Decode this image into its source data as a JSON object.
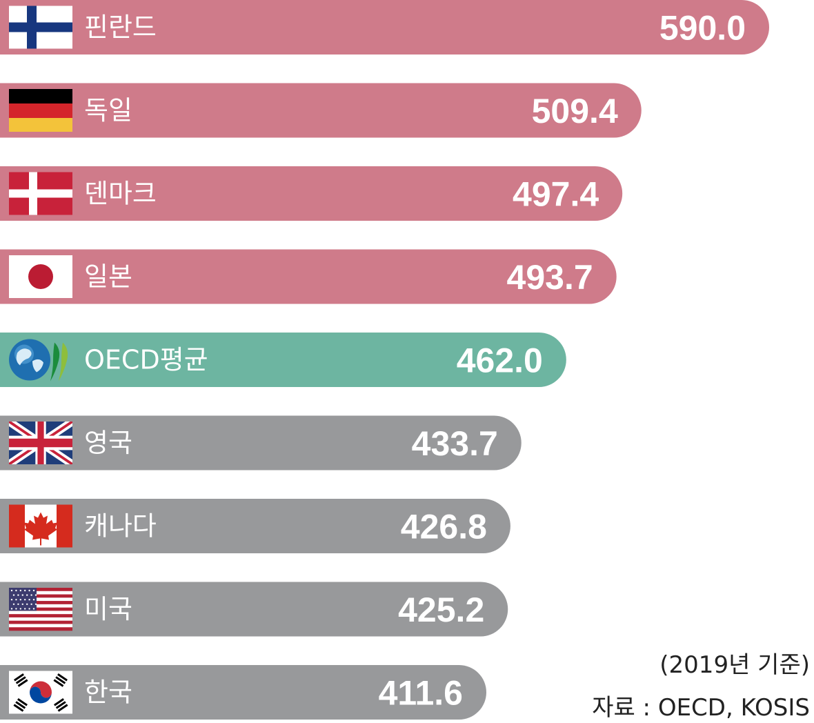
{
  "colors": {
    "highlight": "#cf7b8a",
    "average": "#6db5a1",
    "other": "#98999b"
  },
  "chart_data": {
    "type": "bar",
    "orientation": "horizontal",
    "categories": [
      "핀란드",
      "독일",
      "덴마크",
      "일본",
      "OECD평균",
      "영국",
      "캐나다",
      "미국",
      "한국"
    ],
    "values": [
      590.0,
      509.4,
      497.4,
      493.7,
      462.0,
      433.7,
      426.8,
      425.2,
      411.6
    ],
    "value_labels": [
      "590.0",
      "509.4",
      "497.4",
      "493.7",
      "462.0",
      "433.7",
      "426.8",
      "425.2",
      "411.6"
    ],
    "flags": [
      "finland-flag-icon",
      "germany-flag-icon",
      "denmark-flag-icon",
      "japan-flag-icon",
      "oecd-logo-icon",
      "uk-flag-icon",
      "canada-flag-icon",
      "usa-flag-icon",
      "korea-flag-icon"
    ],
    "bar_colors": [
      "highlight",
      "highlight",
      "highlight",
      "highlight",
      "average",
      "other",
      "other",
      "other",
      "other"
    ],
    "title": "",
    "xlabel": "",
    "ylabel": "",
    "grid": false
  },
  "notes": {
    "base": "(2019년 기준)",
    "source": "자료 : OECD, KOSIS"
  }
}
